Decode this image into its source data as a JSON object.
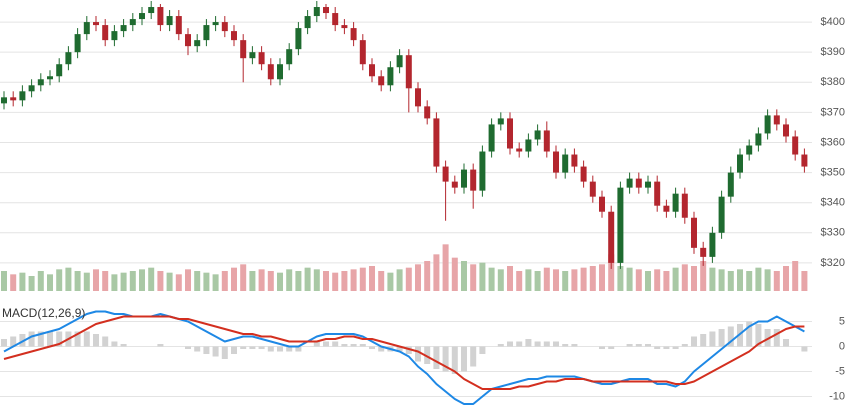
{
  "chart_data": [
    {
      "type": "candlestick",
      "open": [
        373,
        375,
        374,
        377,
        379,
        381,
        382,
        386,
        390,
        396,
        400,
        399,
        394,
        397,
        399,
        401,
        403,
        405,
        399,
        402,
        396,
        392,
        394,
        399,
        400,
        397,
        394,
        388,
        390,
        386,
        381,
        386,
        391,
        398,
        402,
        405,
        403,
        399,
        398,
        394,
        386,
        382,
        379,
        385,
        389,
        378,
        372,
        368,
        352,
        347,
        345,
        351,
        344,
        357,
        366,
        368,
        358,
        357,
        361,
        364,
        357,
        350,
        356,
        352,
        347,
        342,
        337,
        320,
        345,
        348,
        345,
        347,
        339,
        337,
        343,
        335,
        325,
        322,
        330,
        342,
        350,
        356,
        359,
        363,
        369,
        366,
        362,
        356
      ],
      "high": [
        377,
        377,
        379,
        381,
        383,
        384,
        388,
        392,
        398,
        402,
        402,
        401,
        399,
        401,
        403,
        405,
        407,
        406,
        404,
        404,
        398,
        396,
        401,
        402,
        402,
        399,
        396,
        392,
        392,
        388,
        388,
        393,
        400,
        404,
        407,
        406,
        405,
        401,
        400,
        396,
        388,
        384,
        387,
        391,
        391,
        380,
        374,
        370,
        354,
        349,
        353,
        353,
        359,
        368,
        370,
        370,
        360,
        363,
        366,
        367,
        359,
        358,
        358,
        354,
        349,
        344,
        339,
        347,
        350,
        350,
        349,
        349,
        341,
        345,
        345,
        337,
        327,
        332,
        344,
        352,
        358,
        361,
        365,
        371,
        371,
        368,
        364,
        358
      ],
      "low": [
        371,
        372,
        372,
        375,
        377,
        379,
        380,
        384,
        388,
        394,
        397,
        392,
        392,
        395,
        397,
        399,
        401,
        397,
        397,
        394,
        389,
        390,
        392,
        397,
        395,
        392,
        380,
        386,
        384,
        379,
        379,
        384,
        389,
        396,
        400,
        401,
        397,
        396,
        392,
        384,
        380,
        377,
        377,
        383,
        370,
        370,
        366,
        350,
        334,
        343,
        343,
        338,
        342,
        355,
        364,
        356,
        355,
        355,
        359,
        355,
        348,
        348,
        350,
        345,
        340,
        335,
        318,
        318,
        343,
        343,
        343,
        337,
        335,
        335,
        333,
        323,
        319,
        320,
        328,
        340,
        348,
        354,
        357,
        361,
        364,
        360,
        354,
        350
      ],
      "close": [
        375,
        374,
        377,
        379,
        381,
        382,
        386,
        390,
        396,
        400,
        399,
        394,
        397,
        399,
        401,
        403,
        405,
        399,
        402,
        396,
        392,
        394,
        399,
        400,
        397,
        394,
        388,
        390,
        386,
        381,
        386,
        391,
        398,
        402,
        405,
        403,
        399,
        398,
        394,
        386,
        382,
        379,
        385,
        389,
        378,
        372,
        368,
        352,
        347,
        345,
        351,
        344,
        357,
        366,
        368,
        358,
        357,
        361,
        364,
        357,
        350,
        356,
        352,
        347,
        342,
        337,
        320,
        345,
        348,
        345,
        347,
        339,
        337,
        343,
        335,
        325,
        322,
        330,
        342,
        350,
        356,
        359,
        363,
        369,
        366,
        362,
        356,
        352
      ],
      "volume": [
        12,
        10,
        11,
        9,
        12,
        10,
        13,
        14,
        12,
        11,
        13,
        12,
        10,
        11,
        12,
        13,
        14,
        12,
        11,
        10,
        13,
        12,
        11,
        10,
        12,
        14,
        16,
        12,
        13,
        12,
        11,
        13,
        12,
        14,
        13,
        12,
        11,
        12,
        13,
        14,
        15,
        12,
        11,
        13,
        14,
        16,
        18,
        22,
        28,
        20,
        18,
        16,
        17,
        14,
        13,
        15,
        12,
        13,
        12,
        14,
        13,
        12,
        13,
        14,
        15,
        16,
        22,
        15,
        14,
        13,
        12,
        13,
        12,
        14,
        16,
        15,
        18,
        14,
        13,
        12,
        13,
        12,
        14,
        13,
        12,
        15,
        18,
        12
      ],
      "ylim": [
        310,
        407
      ],
      "yticks": [
        {
          "value": 320,
          "label": "$320"
        },
        {
          "value": 330,
          "label": "$330"
        },
        {
          "value": 340,
          "label": "$340"
        },
        {
          "value": 350,
          "label": "$350"
        },
        {
          "value": 360,
          "label": "$360"
        },
        {
          "value": 370,
          "label": "$370"
        },
        {
          "value": 380,
          "label": "$380"
        },
        {
          "value": 390,
          "label": "$390"
        },
        {
          "value": 400,
          "label": "$400"
        }
      ],
      "volume_ylim": [
        0,
        60
      ],
      "up_color": "#1f6b30",
      "down_color": "#b3262e",
      "volume_up_color": "#a9c8a5",
      "volume_down_color": "#e7a5a8",
      "grid": true
    },
    {
      "type": "macd",
      "title": "MACD(12,26,9)",
      "ylim": [
        -12.5,
        7.5
      ],
      "yticks": [
        -10,
        -5,
        0,
        5
      ],
      "grid": true,
      "series": [
        {
          "kind": "histogram",
          "color": "#d2d2d2",
          "values": [
            1.5,
            2,
            2.5,
            3,
            3,
            3,
            3,
            3,
            3,
            3,
            2.5,
            2,
            1,
            0.5,
            0,
            0,
            0,
            0.5,
            0,
            0,
            -0.5,
            -1,
            -1.5,
            -2,
            -2.5,
            -1.5,
            -0.5,
            -0.5,
            -0.5,
            -1,
            -1,
            -1,
            -1,
            0,
            1,
            1,
            1,
            0.5,
            0.5,
            0.5,
            -0.5,
            -1,
            -1,
            -1,
            -1.5,
            -3,
            -3.5,
            -4.5,
            -5,
            -5.5,
            -5,
            -4,
            -1.5,
            0,
            0.5,
            1,
            1,
            1.5,
            1,
            1,
            1,
            0.5,
            0.5,
            0,
            0,
            -0.5,
            -0.5,
            0,
            0.5,
            0.5,
            0.5,
            -0.5,
            -0.5,
            -0.5,
            0.5,
            2,
            2.5,
            3,
            3.5,
            4,
            4.5,
            5,
            4.5,
            3.5,
            3.5,
            1.5,
            0,
            -1
          ]
        },
        {
          "kind": "line",
          "color": "#1e88e5",
          "values": [
            -1,
            0,
            1,
            2,
            2.5,
            3,
            3.5,
            4.5,
            5.5,
            6.5,
            7,
            7,
            6.5,
            6.5,
            6,
            6,
            6,
            6.5,
            6,
            5.5,
            5,
            4,
            3,
            2,
            1,
            1.5,
            2,
            2,
            1.5,
            1,
            0.5,
            0,
            0,
            1,
            2,
            2.5,
            2.5,
            2.5,
            2.5,
            2,
            1,
            0,
            -0.5,
            -1,
            -2,
            -4,
            -5.5,
            -7.5,
            -9,
            -10.5,
            -11.5,
            -11.5,
            -10,
            -8.5,
            -8,
            -7.5,
            -7,
            -6.5,
            -6.5,
            -6,
            -6,
            -6,
            -6,
            -6.5,
            -7,
            -7.5,
            -7.5,
            -7,
            -6.5,
            -6.5,
            -6.5,
            -7.5,
            -7.5,
            -8,
            -7,
            -5,
            -3.5,
            -2,
            -0.5,
            1,
            2.5,
            4,
            5,
            5,
            6,
            5,
            4,
            3
          ]
        },
        {
          "kind": "line",
          "color": "#d32f1f",
          "values": [
            -2.5,
            -2,
            -1.5,
            -1,
            -0.5,
            0,
            0.5,
            1.5,
            2.5,
            3.5,
            4.5,
            5,
            5.5,
            6,
            6,
            6,
            6,
            6,
            6,
            5.5,
            5.5,
            5,
            4.5,
            4,
            3.5,
            3,
            2.5,
            2.5,
            2,
            2,
            1.5,
            1,
            1,
            1,
            1,
            1.5,
            1.5,
            2,
            2,
            1.5,
            1.5,
            1,
            0.5,
            0,
            -0.5,
            -1,
            -2,
            -3,
            -4,
            -5,
            -6.5,
            -7.5,
            -8.5,
            -8.5,
            -8.5,
            -8.5,
            -8,
            -8,
            -7.5,
            -7,
            -7,
            -6.5,
            -6.5,
            -6.5,
            -7,
            -7,
            -7,
            -7,
            -7,
            -7,
            -7,
            -7,
            -7,
            -7.5,
            -7.5,
            -7,
            -6,
            -5,
            -4,
            -3,
            -2,
            -1,
            0.5,
            1.5,
            2.5,
            3.5,
            4,
            4
          ]
        }
      ]
    }
  ]
}
